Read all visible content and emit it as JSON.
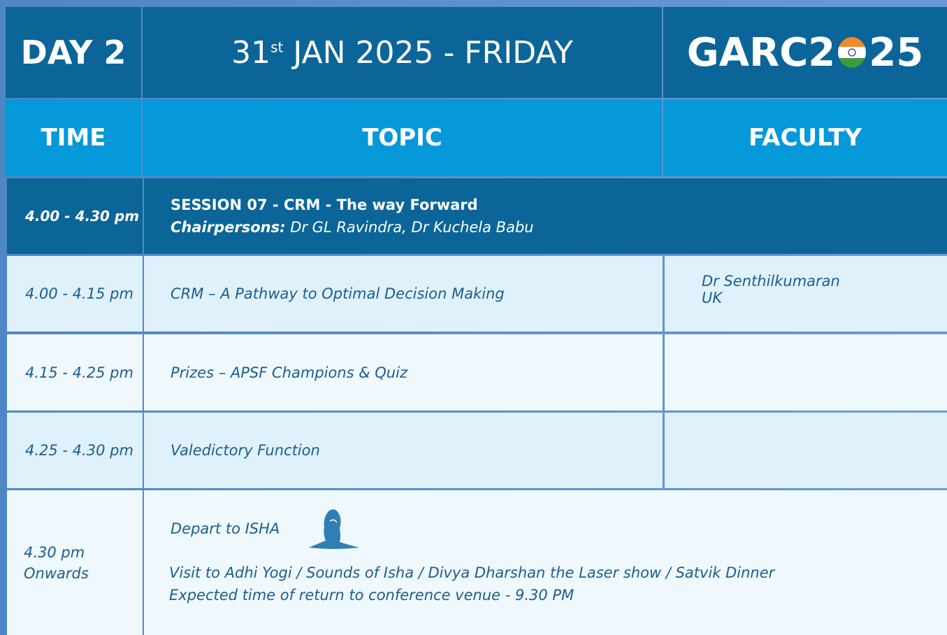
{
  "header": {
    "day": "DAY 2",
    "date_day": "31",
    "date_suffix": "st",
    "date_rest": "JAN 2025 - FRIDAY",
    "logo_left": "GARC2",
    "logo_right": "25"
  },
  "columns": [
    "TIME",
    "TOPIC",
    "FACULTY"
  ],
  "session": {
    "time": "4.00 - 4.30 pm",
    "title": "SESSION 07 - CRM - The way Forward",
    "chair_label": "Chairpersons:",
    "chair_names": "Dr GL Ravindra, Dr Kuchela Babu"
  },
  "rows": [
    {
      "time": "4.00 - 4.15 pm",
      "topic": "CRM – A Pathway to Optimal Decision Making",
      "faculty": [
        "Dr Senthilkumaran",
        "UK"
      ]
    },
    {
      "time": "4.15 - 4.25 pm",
      "topic": "Prizes – APSF Champions & Quiz"
    },
    {
      "time": "4.25 - 4.30 pm",
      "topic": "Valedictory Function"
    }
  ],
  "final": {
    "time": [
      "4.30 pm",
      "Onwards"
    ],
    "depart": "Depart to ISHA",
    "lines": [
      "Visit to Adhi Yogi / Sounds of Isha / Divya Dharshan the Laser show / Satvik Dinner",
      "Expected time of return to conference venue - 9.30 PM"
    ]
  }
}
